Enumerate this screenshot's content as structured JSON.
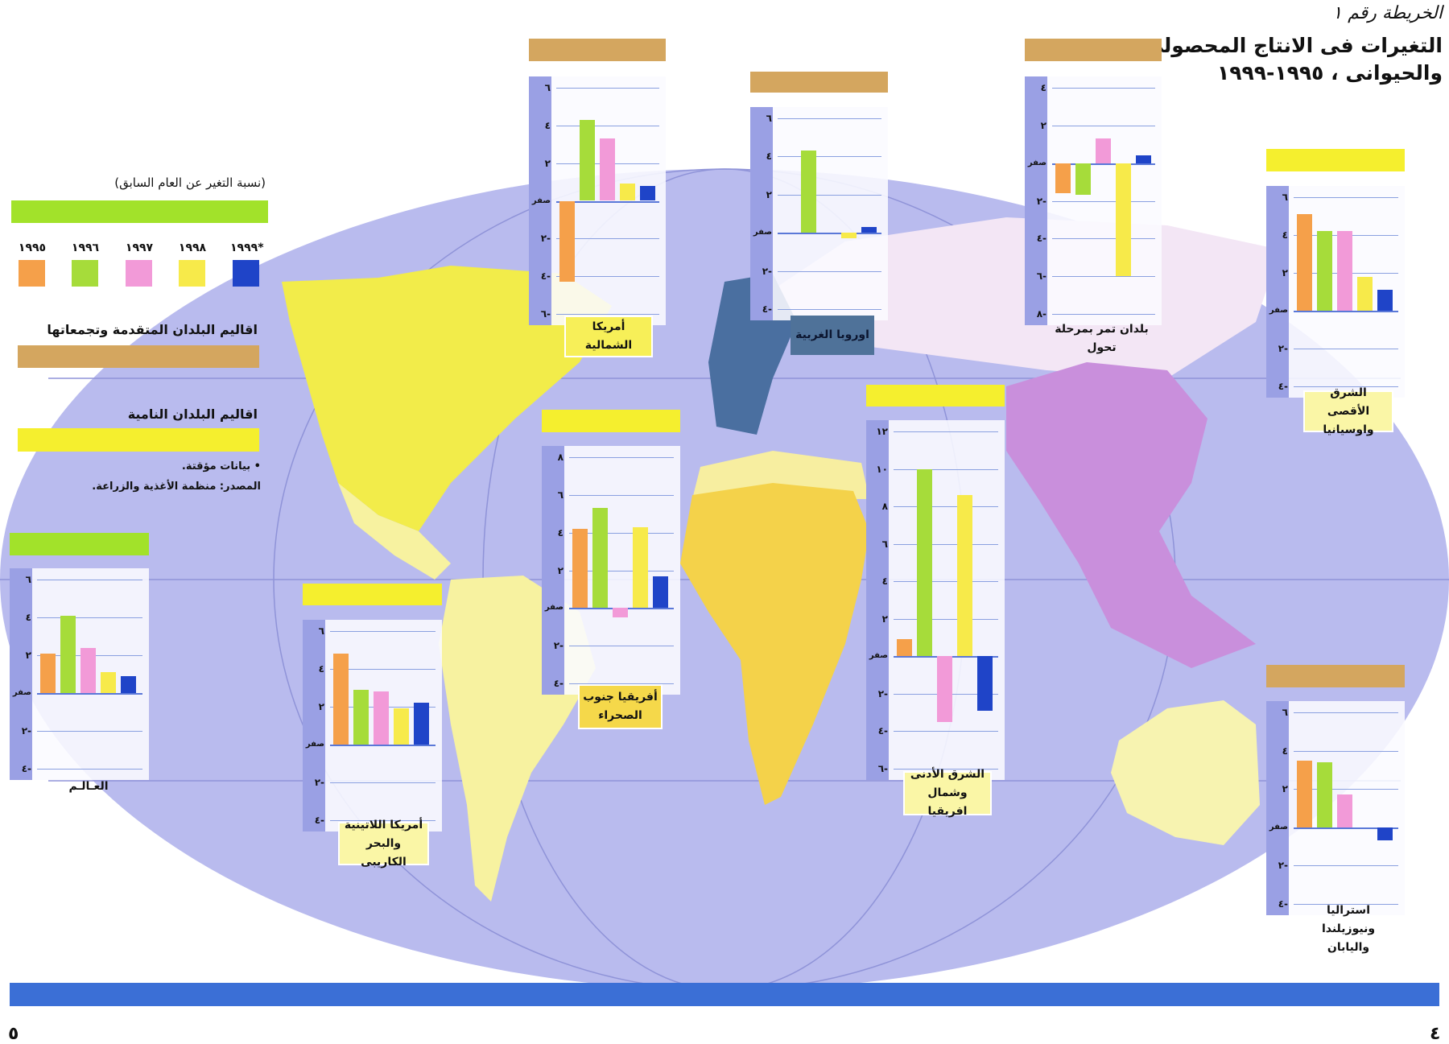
{
  "header": {
    "map_number": "الخريطة رقم ١",
    "title_line1": "التغيرات فى الانتاج المحصولى",
    "title_line2": "والحيوانى ، ١٩٩٥-١٩٩٩"
  },
  "legend": {
    "caption": "(نسبة التغير عن العام السابق)",
    "years": [
      "١٩٩٥",
      "١٩٩٦",
      "١٩٩٧",
      "١٩٩٨",
      "١٩٩٩*"
    ],
    "developed_label": "اقاليم البلدان المتقدمة وتجمعاتها",
    "developing_label": "اقاليم البلدان النامية",
    "provisional_note": "• بيانات مؤقتة.",
    "source": "المصدر: منظمة الأغذية والزراعة."
  },
  "colors": {
    "1995": "#f5a04a",
    "1996": "#a6dc3a",
    "1997": "#f29ad8",
    "1998": "#f7ea4a",
    "1999": "#1f44c8",
    "world": "#a2e22a",
    "developed": "#d4a65f",
    "developing": "#f5ef2e",
    "ocean": "#b9bbee",
    "bottom_bar": "#3b6fd6"
  },
  "footer": {
    "page_left": "٥",
    "page_right": "٤"
  },
  "chart_data": [
    {
      "type": "bar",
      "title": "أمريكا الشمالية",
      "group": "developed",
      "categories": [
        "1995",
        "1996",
        "1997",
        "1998",
        "1999"
      ],
      "values": [
        -4.3,
        4.3,
        3.3,
        0.9,
        0.8
      ],
      "ylim": [
        -6,
        6
      ],
      "ticks": [
        6,
        4,
        2,
        0,
        -2,
        -4,
        -6
      ],
      "tick_labels": [
        "٦",
        "٤",
        "٢",
        "صفر",
        "٢-",
        "٤-",
        "٦-"
      ]
    },
    {
      "type": "bar",
      "title": "اوروبا الغربية",
      "group": "developed",
      "categories": [
        "1995",
        "1996",
        "1997",
        "1998",
        "1999"
      ],
      "values": [
        0,
        4.3,
        0,
        -0.3,
        0.3
      ],
      "ylim": [
        -4,
        6
      ],
      "ticks": [
        6,
        4,
        2,
        0,
        -2,
        -4
      ],
      "tick_labels": [
        "٦",
        "٤",
        "٢",
        "صفر",
        "٢-",
        "٤-"
      ]
    },
    {
      "type": "bar",
      "title": "بلدان تمر بمرحلة تحول",
      "group": "developed",
      "categories": [
        "1995",
        "1996",
        "1997",
        "1998",
        "1999"
      ],
      "values": [
        -1.6,
        -1.7,
        1.3,
        -6.0,
        0.4
      ],
      "ylim": [
        -8,
        4
      ],
      "ticks": [
        4,
        2,
        0,
        -2,
        -4,
        -6,
        -8
      ],
      "tick_labels": [
        "٤",
        "٢",
        "صفر",
        "٢-",
        "٤-",
        "٦-",
        "٨-"
      ]
    },
    {
      "type": "bar",
      "title": "الشرق الأقصى واوسيانيا",
      "group": "developing",
      "categories": [
        "1995",
        "1996",
        "1997",
        "1998",
        "1999"
      ],
      "values": [
        5.1,
        4.2,
        4.2,
        1.8,
        1.1
      ],
      "ylim": [
        -4,
        6
      ],
      "ticks": [
        6,
        4,
        2,
        0,
        -2,
        -4
      ],
      "tick_labels": [
        "٦",
        "٤",
        "٢",
        "صفر",
        "٢-",
        "٤-"
      ]
    },
    {
      "type": "bar",
      "title": "العـالـم",
      "group": "world",
      "categories": [
        "1995",
        "1996",
        "1997",
        "1998",
        "1999"
      ],
      "values": [
        2.1,
        4.1,
        2.4,
        1.1,
        0.9
      ],
      "ylim": [
        -4,
        6
      ],
      "ticks": [
        6,
        4,
        2,
        0,
        -2,
        -4
      ],
      "tick_labels": [
        "٦",
        "٤",
        "٢",
        "صفر",
        "٢-",
        "٤-"
      ]
    },
    {
      "type": "bar",
      "title": "أمريكا اللاتينية والبحر الكاريبى",
      "group": "developing",
      "categories": [
        "1995",
        "1996",
        "1997",
        "1998",
        "1999"
      ],
      "values": [
        4.8,
        2.9,
        2.8,
        1.9,
        2.2
      ],
      "ylim": [
        -4,
        6
      ],
      "ticks": [
        6,
        4,
        2,
        0,
        -2,
        -4
      ],
      "tick_labels": [
        "٦",
        "٤",
        "٢",
        "صفر",
        "٢-",
        "٤-"
      ]
    },
    {
      "type": "bar",
      "title": "أفريقيا جنوب الصحراء",
      "group": "developing",
      "categories": [
        "1995",
        "1996",
        "1997",
        "1998",
        "1999"
      ],
      "values": [
        4.2,
        5.3,
        -0.5,
        4.3,
        1.7
      ],
      "ylim": [
        -4,
        8
      ],
      "ticks": [
        8,
        6,
        4,
        2,
        0,
        -2,
        -4
      ],
      "tick_labels": [
        "٨",
        "٦",
        "٤",
        "٢",
        "صفر",
        "٢-",
        "٤-"
      ]
    },
    {
      "type": "bar",
      "title": "الشرق الأدنى وشمال افريقيا",
      "group": "developing",
      "categories": [
        "1995",
        "1996",
        "1997",
        "1998",
        "1999"
      ],
      "values": [
        0.9,
        10.0,
        -3.5,
        8.6,
        -2.9
      ],
      "ylim": [
        -6,
        12
      ],
      "ticks": [
        12,
        10,
        8,
        6,
        4,
        2,
        0,
        -2,
        -4,
        -6
      ],
      "tick_labels": [
        "١٢",
        "١٠",
        "٨",
        "٦",
        "٤",
        "٢",
        "صفر",
        "٢-",
        "٤-",
        "٦-"
      ]
    },
    {
      "type": "bar",
      "title": "استراليا ونيوزيلندا واليابان",
      "group": "developed",
      "categories": [
        "1995",
        "1996",
        "1997",
        "1998",
        "1999"
      ],
      "values": [
        3.5,
        3.4,
        1.7,
        0,
        -0.7
      ],
      "ylim": [
        -4,
        6
      ],
      "ticks": [
        6,
        4,
        2,
        0,
        -2,
        -4
      ],
      "tick_labels": [
        "٦",
        "٤",
        "٢",
        "صفر",
        "٢-",
        "٤-"
      ]
    }
  ]
}
